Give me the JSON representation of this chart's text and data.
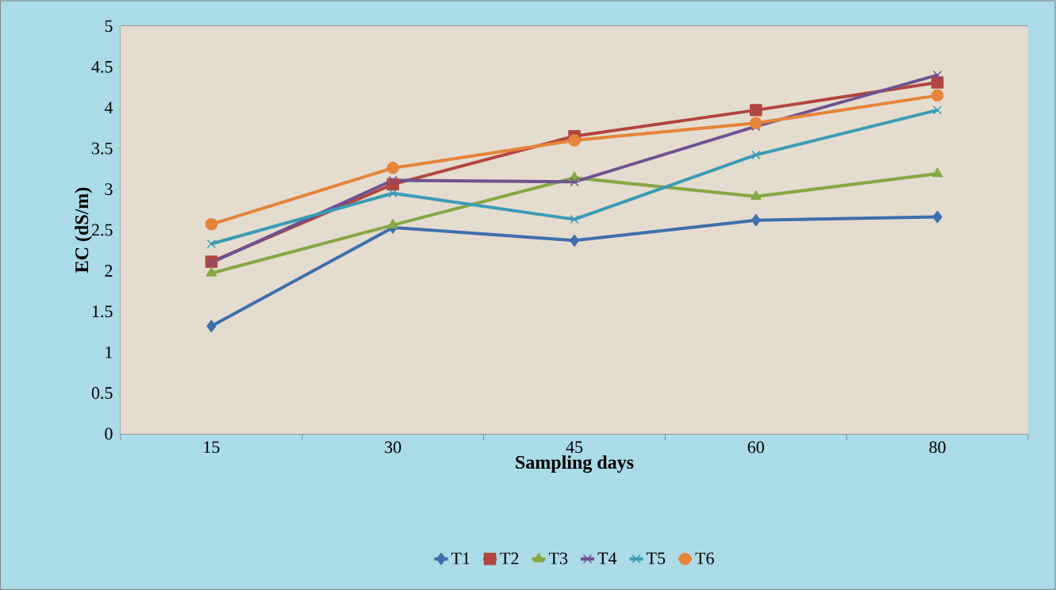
{
  "chart_data": {
    "type": "line",
    "xlabel": "Sampling days",
    "ylabel": "EC (dS/m)",
    "categories": [
      "15",
      "30",
      "45",
      "60",
      "80"
    ],
    "series": [
      {
        "name": "T1",
        "color": "#3f6fac",
        "marker": "diamond",
        "values": [
          1.32,
          2.53,
          2.37,
          2.62,
          2.66
        ]
      },
      {
        "name": "T2",
        "color": "#b24541",
        "marker": "square",
        "values": [
          2.11,
          3.06,
          3.65,
          3.97,
          4.31
        ]
      },
      {
        "name": "T3",
        "color": "#86a845",
        "marker": "triangle",
        "values": [
          1.97,
          2.56,
          3.14,
          2.91,
          3.19
        ]
      },
      {
        "name": "T4",
        "color": "#6f5291",
        "marker": "cross",
        "values": [
          2.1,
          3.11,
          3.09,
          3.77,
          4.4
        ]
      },
      {
        "name": "T5",
        "color": "#3a9bb5",
        "marker": "cross",
        "values": [
          2.33,
          2.95,
          2.63,
          3.42,
          3.97
        ]
      },
      {
        "name": "T6",
        "color": "#e5843a",
        "marker": "circle",
        "values": [
          2.57,
          3.26,
          3.6,
          3.81,
          4.15
        ]
      }
    ],
    "ylim": [
      0,
      5
    ],
    "yticks": [
      0,
      0.5,
      1,
      1.5,
      2,
      2.5,
      3,
      3.5,
      4,
      4.5,
      5
    ],
    "grid": "y",
    "legend": "bottom"
  }
}
